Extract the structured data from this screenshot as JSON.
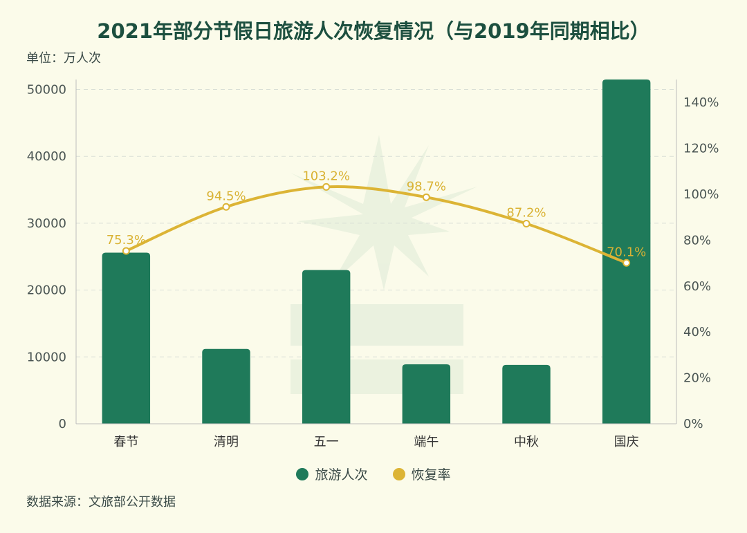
{
  "title": "2021年部分节假日旅游人次恢复情况（与2019年同期相比）",
  "unit": "单位：万人次",
  "source": "数据来源：文旅部公开数据",
  "colors": {
    "bar": "#1f7a5a",
    "line": "#dcb435",
    "axis": "#bcbcbc",
    "grid": "#d9dfd6"
  },
  "chart_data": {
    "type": "bar",
    "categories": [
      "春节",
      "清明",
      "五一",
      "端午",
      "中秋",
      "国庆"
    ],
    "series": [
      {
        "name": "旅游人次",
        "type": "bar",
        "axis": "left",
        "values": [
          25600,
          11200,
          23000,
          8900,
          8800,
          51500
        ]
      },
      {
        "name": "恢复率",
        "type": "line",
        "axis": "right",
        "values": [
          75.3,
          94.5,
          103.2,
          98.7,
          87.2,
          70.1
        ],
        "labels": [
          "75.3%",
          "94.5%",
          "103.2%",
          "98.7%",
          "87.2%",
          "70.1%"
        ]
      }
    ],
    "y_left": {
      "min": 0,
      "max": 51500,
      "ticks": [
        0,
        10000,
        20000,
        30000,
        40000,
        50000
      ],
      "tick_labels": [
        "0",
        "10000",
        "20000",
        "30000",
        "40000",
        "50000"
      ]
    },
    "y_right": {
      "min": 0,
      "max": 150,
      "ticks": [
        0,
        20,
        40,
        60,
        80,
        100,
        120,
        140
      ],
      "tick_labels": [
        "0%",
        "20%",
        "40%",
        "60%",
        "80%",
        "100%",
        "120%",
        "140%"
      ]
    },
    "grid": true,
    "legend_position": "bottom-center"
  }
}
